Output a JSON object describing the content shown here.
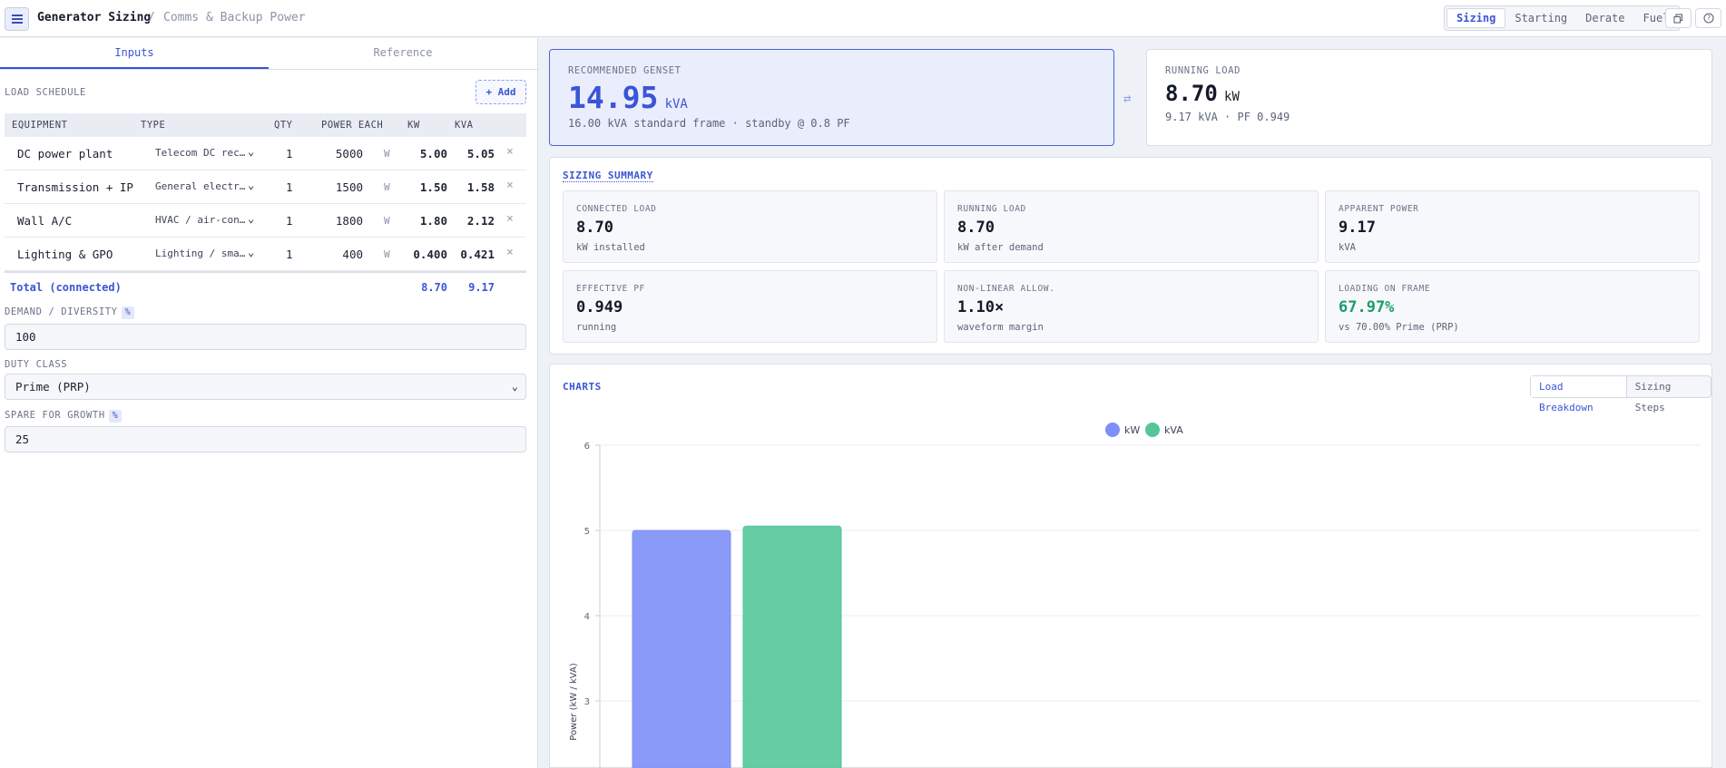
{
  "header": {
    "title": "Generator Sizing",
    "separator": "/",
    "subtitle": "Comms & Backup Power",
    "view_tabs": [
      {
        "label": "Sizing",
        "active": true
      },
      {
        "label": "Starting",
        "active": false
      },
      {
        "label": "Derate",
        "active": false
      },
      {
        "label": "Fuel",
        "active": false
      }
    ],
    "icons": [
      "menu-icon",
      "copy-icon",
      "help-icon"
    ]
  },
  "left": {
    "tabs": [
      {
        "label": "Inputs",
        "active": true
      },
      {
        "label": "Reference",
        "active": false
      }
    ],
    "load_schedule_label": "LOAD SCHEDULE",
    "add_label": "+ Add",
    "columns": [
      "EQUIPMENT",
      "TYPE",
      "QTY",
      "POWER EACH",
      "KW",
      "KVA"
    ],
    "rows": [
      {
        "name": "DC power plant",
        "type": "Telecom DC rec…",
        "qty": "1",
        "power": "5000",
        "unit": "W",
        "kw": "5.00",
        "kva": "5.05"
      },
      {
        "name": "Transmission + IP",
        "type": "General electr…",
        "qty": "1",
        "power": "1500",
        "unit": "W",
        "kw": "1.50",
        "kva": "1.58"
      },
      {
        "name": "Wall A/C",
        "type": "HVAC / air-con…",
        "qty": "1",
        "power": "1800",
        "unit": "W",
        "kw": "1.80",
        "kva": "2.12"
      },
      {
        "name": "Lighting & GPO",
        "type": "Lighting / sma…",
        "qty": "1",
        "power": "400",
        "unit": "W",
        "kw": "0.400",
        "kva": "0.421"
      }
    ],
    "total": {
      "label": "Total (connected)",
      "kw": "8.70",
      "kva": "9.17"
    },
    "demand_label": "DEMAND / DIVERSITY",
    "demand_unit": "%",
    "demand_value": "100",
    "duty_label": "DUTY CLASS",
    "duty_value": "Prime (PRP)",
    "spare_label": "SPARE FOR GROWTH",
    "spare_unit": "%",
    "spare_value": "25"
  },
  "recommended": {
    "label": "RECOMMENDED GENSET",
    "value": "14.95",
    "unit": "kVA",
    "sub": "16.00 kVA standard frame · standby @ 0.8 PF"
  },
  "running": {
    "label": "RUNNING LOAD",
    "value": "8.70",
    "unit": "kW",
    "sub": "9.17 kVA · PF 0.949"
  },
  "summary": {
    "title": "SIZING SUMMARY",
    "tiles": [
      {
        "label": "CONNECTED LOAD",
        "value": "8.70",
        "sub": "kW installed"
      },
      {
        "label": "RUNNING LOAD",
        "value": "8.70",
        "sub": "kW after demand"
      },
      {
        "label": "APPARENT POWER",
        "value": "9.17",
        "sub": "kVA"
      },
      {
        "label": "EFFECTIVE PF",
        "value": "0.949",
        "sub": "running"
      },
      {
        "label": "NON-LINEAR ALLOW.",
        "value": "1.10×",
        "sub": "waveform margin"
      },
      {
        "label": "LOADING ON FRAME",
        "value": "67.97%",
        "sub": "vs 70.00% Prime (PRP)"
      }
    ],
    "good_color": "#1a9e6a"
  },
  "charts": {
    "title": "CHARTS",
    "tabs": [
      {
        "label": "Load Breakdown",
        "active": true
      },
      {
        "label": "Sizing Steps",
        "active": false
      }
    ]
  },
  "chart_data": {
    "type": "bar",
    "categories": [
      ""
    ],
    "series": [
      {
        "name": "kW",
        "values": [
          5.0
        ],
        "color": "#7d8ff8"
      },
      {
        "name": "kVA",
        "values": [
          5.05
        ],
        "color": "#54c69a"
      }
    ],
    "ylabel": "Power (kW / kVA)",
    "yticks": [
      3,
      4,
      5,
      6
    ],
    "ylim": [
      0,
      6
    ],
    "legend": "top-center"
  }
}
